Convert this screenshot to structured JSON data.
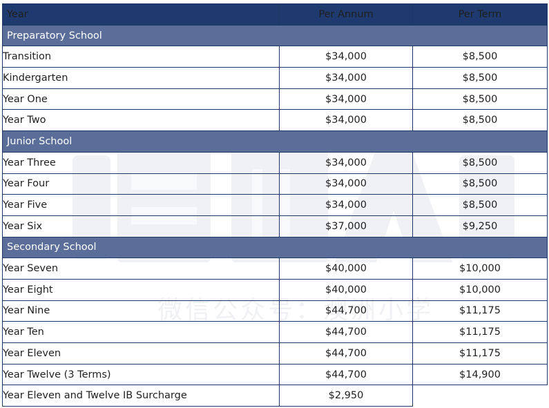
{
  "table": {
    "headers": {
      "year": "Year",
      "per_annum": "Per Annum",
      "per_term": "Per Term"
    },
    "sections": [
      {
        "title": "Preparatory School",
        "rows": [
          {
            "year": "Transition",
            "per_annum": "$34,000",
            "per_term": "$8,500"
          },
          {
            "year": "Kindergarten",
            "per_annum": "$34,000",
            "per_term": "$8,500"
          },
          {
            "year": "Year One",
            "per_annum": "$34,000",
            "per_term": "$8,500"
          },
          {
            "year": "Year Two",
            "per_annum": "$34,000",
            "per_term": "$8,500"
          }
        ]
      },
      {
        "title": "Junior School",
        "rows": [
          {
            "year": "Year Three",
            "per_annum": "$34,000",
            "per_term": "$8,500"
          },
          {
            "year": "Year Four",
            "per_annum": "$34,000",
            "per_term": "$8,500"
          },
          {
            "year": "Year Five",
            "per_annum": "$34,000",
            "per_term": "$8,500"
          },
          {
            "year": "Year Six",
            "per_annum": "$37,000",
            "per_term": "$9,250"
          }
        ]
      },
      {
        "title": "Secondary School",
        "rows": [
          {
            "year": "Year Seven",
            "per_annum": "$40,000",
            "per_term": "$10,000"
          },
          {
            "year": "Year Eight",
            "per_annum": "$40,000",
            "per_term": "$10,000"
          },
          {
            "year": "Year Nine",
            "per_annum": "$44,700",
            "per_term": "$11,175"
          },
          {
            "year": "Year Ten",
            "per_annum": "$44,700",
            "per_term": "$11,175"
          },
          {
            "year": "Year Eleven",
            "per_annum": "$44,700",
            "per_term": "$11,175"
          },
          {
            "year": "Year Twelve (3 Terms)",
            "per_annum": "$44,700",
            "per_term": "$14,900"
          }
        ]
      }
    ],
    "footer_row": {
      "year": "Year Eleven and Twelve IB Surcharge",
      "per_annum": "$2,950"
    }
  },
  "watermark": {
    "text": "微信公众号：澳洲小学"
  },
  "colors": {
    "header_bg": "#1e3a6e",
    "section_bg": "#5a6e99",
    "border": "#1e3866"
  }
}
